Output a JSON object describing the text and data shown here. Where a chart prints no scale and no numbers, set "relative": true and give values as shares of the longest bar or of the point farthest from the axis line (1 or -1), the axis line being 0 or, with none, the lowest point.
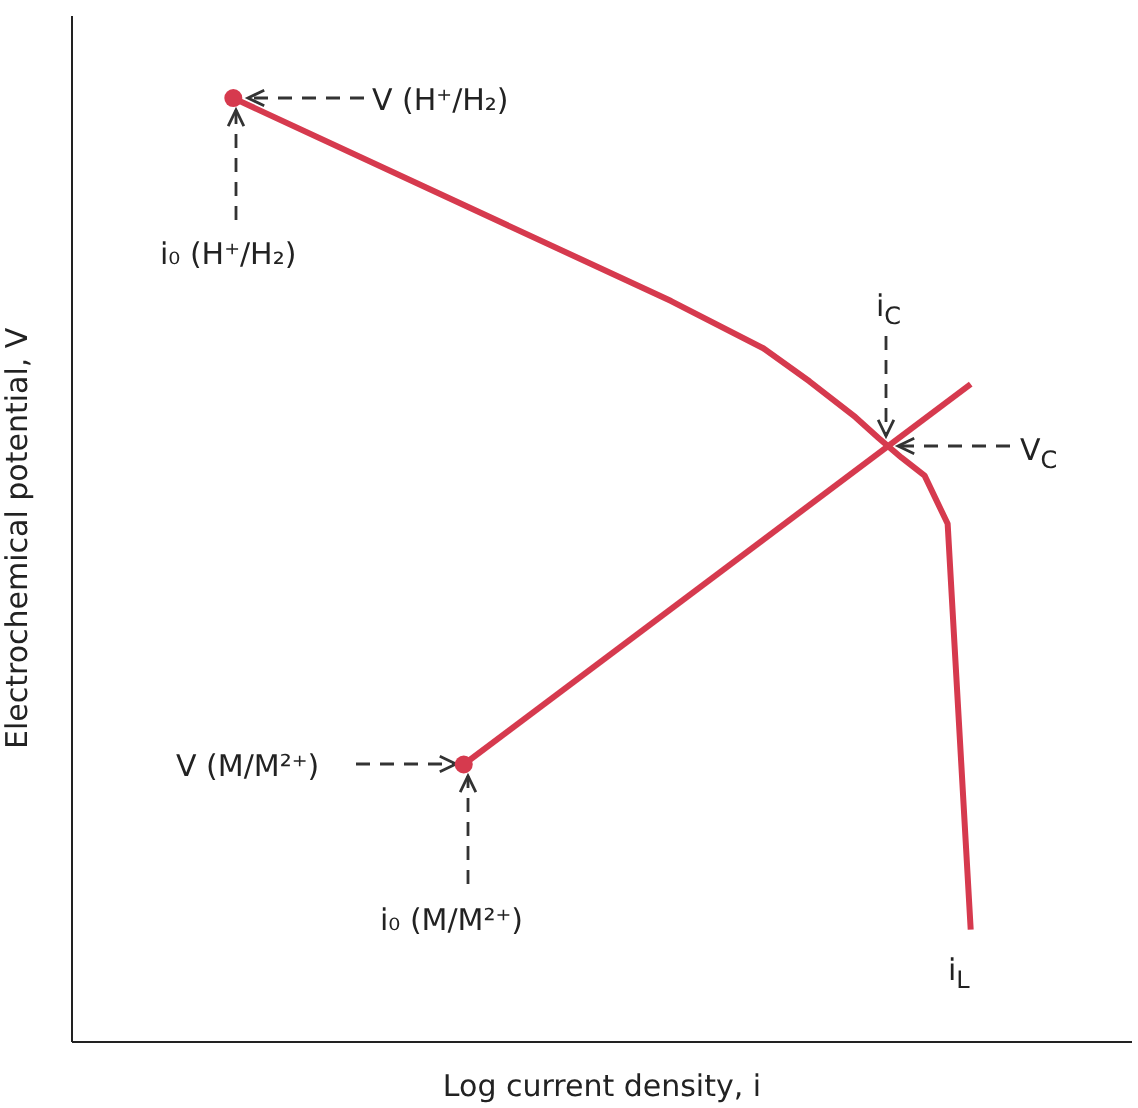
{
  "chart_data": {
    "type": "line",
    "relative": true,
    "xlabel": "Log current density, i",
    "ylabel": "Electrochemical potential, V",
    "categories": [
      null,
      null,
      null,
      null,
      null,
      null,
      null,
      null,
      null,
      null,
      null,
      null,
      null,
      null,
      null,
      null,
      null,
      null,
      null,
      null,
      null,
      null,
      null,
      null,
      null,
      null,
      null,
      null,
      null,
      null,
      null,
      null,
      null,
      null,
      null,
      null,
      null,
      null,
      null,
      null,
      null,
      null,
      null,
      null,
      null,
      null,
      null
    ],
    "series": [
      {
        "color": "#d63a4e",
        "values": [
          null,
          null,
          null,
          null,
          null,
          null,
          null,
          1.0,
          null,
          null,
          null,
          null,
          null,
          null,
          null,
          null,
          null,
          null,
          null,
          null,
          null,
          null,
          null,
          null,
          null,
          null,
          0.785,
          null,
          null,
          null,
          0.735,
          null,
          0.7,
          null,
          0.662,
          0.64,
          0.619,
          0.6,
          0.549,
          0.119,
          null,
          null,
          null,
          null,
          null,
          null,
          null
        ]
      },
      {
        "color": "#d63a4e",
        "values": [
          null,
          null,
          null,
          null,
          null,
          null,
          null,
          null,
          null,
          null,
          null,
          null,
          null,
          null,
          null,
          null,
          null,
          0.294,
          null,
          null,
          null,
          null,
          null,
          null,
          null,
          null,
          null,
          null,
          null,
          null,
          null,
          null,
          null,
          null,
          null,
          null,
          null,
          null,
          null,
          0.697,
          null,
          null,
          null,
          null,
          null,
          null,
          null
        ]
      }
    ],
    "annotations": [
      "V (H⁺/H₂)",
      "i₀ (H⁺/H₂)",
      "i$_{C}$",
      "V$_{C}$",
      "V (M/M²⁺)",
      "i₀ (M/M²⁺)",
      "i$_{L}$"
    ],
    "grid": false,
    "legend": false
  }
}
